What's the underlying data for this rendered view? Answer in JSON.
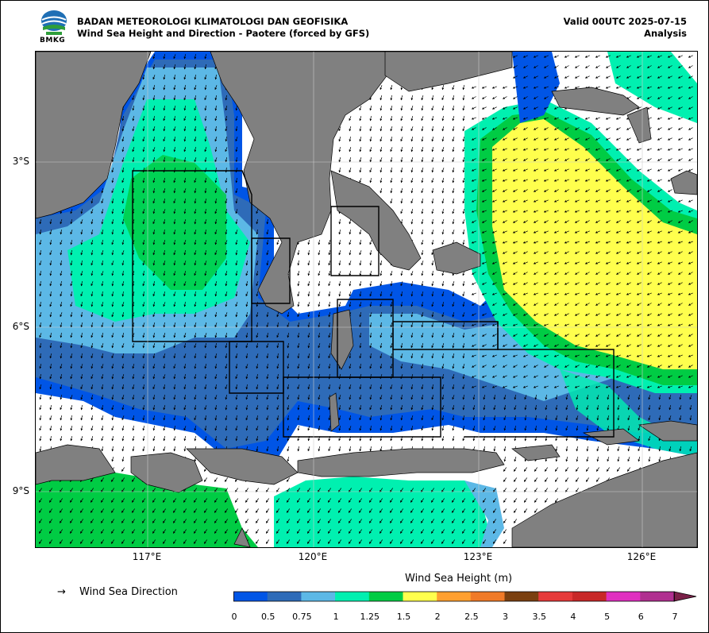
{
  "header": {
    "agency": "BADAN METEOROLOGI KLIMATOLOGI DAN GEOFISIKA",
    "product": "Wind Sea Height and Direction - Paotere (forced by GFS)",
    "valid": "Valid 00UTC 2025-07-15",
    "type": "Analysis",
    "logo_text": "BMKG"
  },
  "map": {
    "lat_labels": [
      "3°S",
      "6°S",
      "9°S"
    ],
    "lon_labels": [
      "117°E",
      "120°E",
      "123°E",
      "126°E"
    ],
    "land_color": "#808080",
    "sea_color": "#ffffff"
  },
  "legend": {
    "arrow_symbol": "→",
    "direction_label": "Wind Sea Direction",
    "colorbar_title": "Wind Sea Height (m)",
    "ticks": [
      "0",
      "0.5",
      "0.75",
      "1",
      "1.25",
      "1.5",
      "2",
      "2.5",
      "3",
      "3.5",
      "4",
      "5",
      "6",
      "7"
    ],
    "colors": [
      "#0055e6",
      "#2e6bb8",
      "#5cb8e6",
      "#00f0b0",
      "#00cc44",
      "#ffff4d",
      "#ffa030",
      "#f07a28",
      "#7a4010",
      "#e63a3a",
      "#c82828",
      "#e030c0",
      "#b03090",
      "#7a2048"
    ]
  }
}
